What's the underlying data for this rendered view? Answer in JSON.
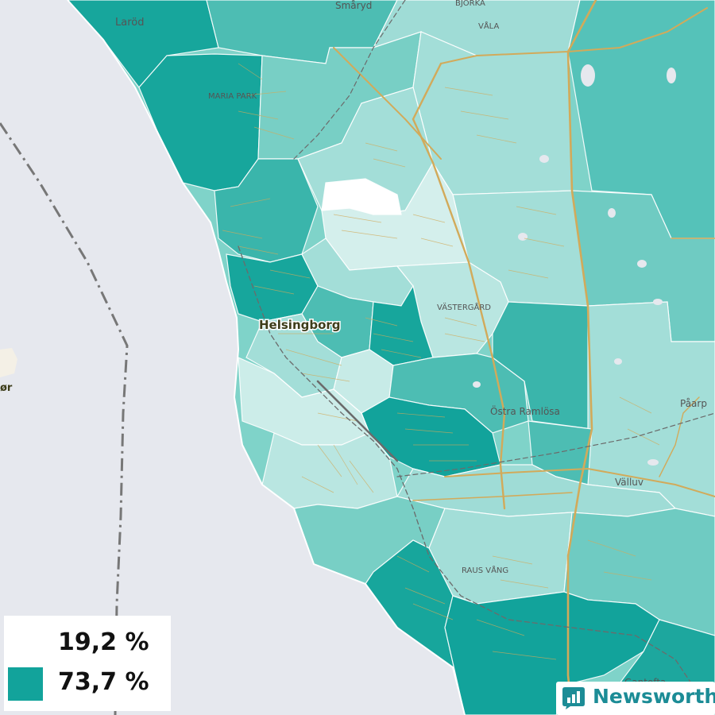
{
  "map": {
    "places": {
      "larod": "Laröd",
      "smaryd": "Småryd",
      "bjorka": "BJÖRKA",
      "vala": "VÅLA",
      "maria_park": "MARIA PARK",
      "helsingborg": "Helsingborg",
      "vastergard": "VÄSTERGÅRD",
      "ostra_ramlosa": "Östra Ramlösa",
      "paarp": "Påarp",
      "valluv": "Välluv",
      "raus_vang": "RAUS VÅNG",
      "helsingor_fragment": "ør",
      "gantofta_fragment": "Gantofta"
    },
    "legend": {
      "min_label": "19,2 %",
      "max_label": "73,7 %",
      "min_color": "#ffffff",
      "max_color": "#12a39b"
    },
    "colors": {
      "water": "#e6e8ee",
      "road": "#d2aa5a",
      "railway": "#6b6b6b",
      "border": "#777777"
    }
  },
  "brand": {
    "name": "Newsworthy",
    "color": "#1c8c96",
    "icon": "bar-chart-icon"
  }
}
